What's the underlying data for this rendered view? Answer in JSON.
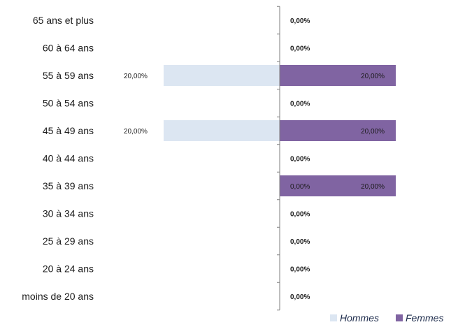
{
  "chart_data": {
    "type": "bar",
    "orientation": "horizontal",
    "layout": "population-pyramid",
    "categories": [
      "65 ans et plus",
      "60 à 64 ans",
      "55 à 59 ans",
      "50 à 54 ans",
      "45 à 49 ans",
      "40 à 44 ans",
      "35 à 39 ans",
      "30 à 34 ans",
      "25 à 29 ans",
      "20 à 24 ans",
      "moins de 20 ans"
    ],
    "series": [
      {
        "name": "Hommes",
        "color": "#dce6f2",
        "values": [
          0,
          0,
          20,
          0,
          20,
          0,
          0,
          0,
          0,
          0,
          0
        ],
        "labels": [
          "",
          "",
          "20,00%",
          "",
          "20,00%",
          "",
          "0,00%",
          "",
          "",
          "",
          ""
        ]
      },
      {
        "name": "Femmes",
        "color": "#8064a2",
        "values": [
          0,
          0,
          20,
          0,
          20,
          0,
          20,
          0,
          0,
          0,
          0
        ],
        "labels": [
          "0,00%",
          "0,00%",
          "20,00%",
          "0,00%",
          "20,00%",
          "0,00%",
          "20,00%",
          "0,00%",
          "0,00%",
          "0,00%",
          "0,00%"
        ]
      }
    ],
    "value_unit": "%",
    "legend_position": "bottom-right",
    "grid": false
  }
}
